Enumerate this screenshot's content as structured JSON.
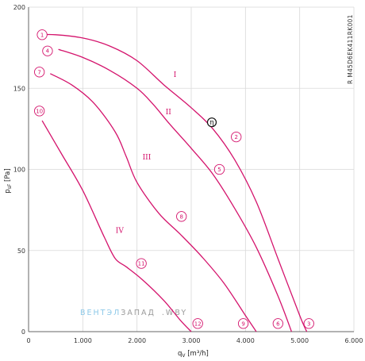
{
  "chart_data": {
    "type": "line",
    "xlabel": "q",
    "xlabel_sub": "V",
    "xlabel_unit": "[m³/h]",
    "ylabel": "p",
    "ylabel_sub": "sF",
    "ylabel_unit": "[Pa]",
    "xlim": [
      0,
      6000
    ],
    "ylim": [
      0,
      200
    ],
    "x_ticks": [
      0,
      1000,
      2000,
      3000,
      4000,
      5000,
      6000
    ],
    "x_tick_labels": [
      "0",
      "1.000",
      "2.000",
      "3.000",
      "4.000",
      "5.000",
      "6.000"
    ],
    "y_ticks": [
      0,
      50,
      100,
      150,
      200
    ],
    "y_tick_labels": [
      "0",
      "50",
      "100",
      "150",
      "200"
    ],
    "grid": true,
    "line_color": "#d4136c",
    "model_label": "R M45D6EK411RK001",
    "series": [
      {
        "name": "I",
        "label_at": [
          2700,
          157
        ],
        "x": [
          200,
          500,
          1000,
          1500,
          2000,
          2500,
          3000,
          3400,
          3800,
          4200,
          4600,
          5000,
          5130
        ],
        "y": [
          183,
          183,
          181,
          176,
          167,
          152,
          138,
          125,
          106,
          80,
          45,
          10,
          0
        ]
      },
      {
        "name": "II",
        "label_at": [
          2580,
          134
        ],
        "x": [
          550,
          1000,
          1500,
          2000,
          2300,
          2600,
          3000,
          3400,
          3800,
          4200,
          4600,
          4850
        ],
        "y": [
          174,
          169,
          161,
          150,
          140,
          128,
          113,
          97,
          76,
          52,
          22,
          0
        ]
      },
      {
        "name": "III",
        "label_at": [
          2180,
          106
        ],
        "x": [
          400,
          800,
          1200,
          1600,
          1800,
          2000,
          2400,
          2800,
          3200,
          3600,
          4000,
          4200
        ],
        "y": [
          159,
          152,
          141,
          123,
          108,
          92,
          73,
          60,
          46,
          30,
          10,
          0
        ]
      },
      {
        "name": "IV",
        "label_at": [
          1680,
          61
        ],
        "x": [
          250,
          600,
          1000,
          1400,
          1600,
          1800,
          2100,
          2500,
          2800,
          3000
        ],
        "y": [
          130,
          110,
          87,
          58,
          45,
          40,
          32,
          19,
          7,
          0
        ]
      }
    ],
    "point_markers": [
      {
        "label": "1",
        "x": 250,
        "y": 183
      },
      {
        "label": "4",
        "x": 350,
        "y": 173
      },
      {
        "label": "7",
        "x": 200,
        "y": 160
      },
      {
        "label": "10",
        "x": 200,
        "y": 136
      },
      {
        "label": "2",
        "x": 3830,
        "y": 120
      },
      {
        "label": "5",
        "x": 3520,
        "y": 100
      },
      {
        "label": "8",
        "x": 2820,
        "y": 71
      },
      {
        "label": "11",
        "x": 2080,
        "y": 42
      },
      {
        "label": "3",
        "x": 5170,
        "y": 5
      },
      {
        "label": "6",
        "x": 4600,
        "y": 5
      },
      {
        "label": "9",
        "x": 3960,
        "y": 5
      },
      {
        "label": "12",
        "x": 3120,
        "y": 5
      }
    ],
    "efficiency_marker": {
      "label": "η",
      "x": 3380,
      "y": 129
    },
    "watermark": {
      "part1": "ВЕНТЭЛ",
      "part2": "ЗАПАД",
      "part3": ".WBY"
    }
  }
}
